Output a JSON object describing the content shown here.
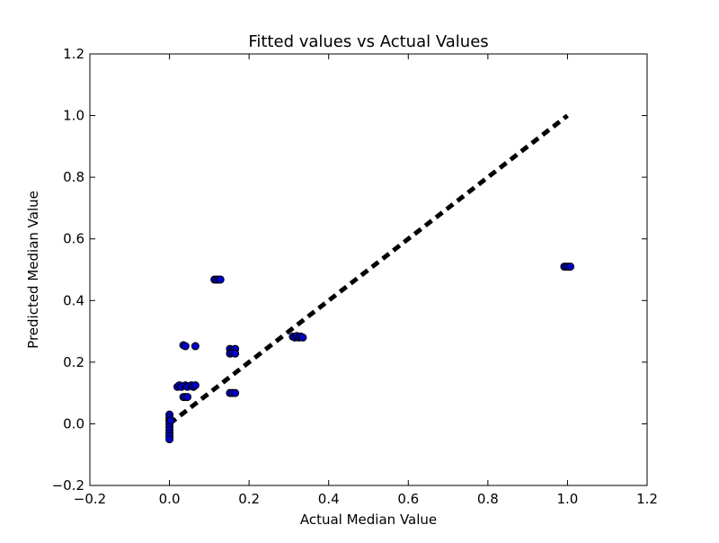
{
  "chart_data": {
    "type": "scatter",
    "title": "Fitted values vs Actual Values",
    "xlabel": "Actual Median Value",
    "ylabel": "Predicted Median Value",
    "xlim": [
      -0.2,
      1.2
    ],
    "ylim": [
      -0.2,
      1.2
    ],
    "xticks": [
      -0.2,
      0.0,
      0.2,
      0.4,
      0.6,
      0.8,
      1.0,
      1.2
    ],
    "yticks": [
      -0.2,
      0.0,
      0.2,
      0.4,
      0.6,
      0.8,
      1.0,
      1.2
    ],
    "xtick_labels": [
      "−0.2",
      "0.0",
      "0.2",
      "0.4",
      "0.6",
      "0.8",
      "1.0",
      "1.2"
    ],
    "ytick_labels": [
      "−0.2",
      "0.0",
      "0.2",
      "0.4",
      "0.6",
      "0.8",
      "1.0",
      "1.2"
    ],
    "grid": false,
    "marker_color": "#0000cc",
    "marker_edge_color": "#000000",
    "reference_line": {
      "x": [
        0.0,
        1.0
      ],
      "y": [
        0.0,
        1.0
      ],
      "style": "dashed",
      "color": "#000000"
    },
    "points": [
      {
        "x": 0.0,
        "y": 0.03
      },
      {
        "x": 0.0,
        "y": 0.02
      },
      {
        "x": 0.0,
        "y": 0.01
      },
      {
        "x": 0.0,
        "y": 0.0
      },
      {
        "x": 0.0,
        "y": -0.01
      },
      {
        "x": 0.0,
        "y": -0.02
      },
      {
        "x": 0.0,
        "y": -0.03
      },
      {
        "x": 0.0,
        "y": -0.04
      },
      {
        "x": 0.0,
        "y": -0.05
      },
      {
        "x": 0.003,
        "y": 0.01
      },
      {
        "x": 0.02,
        "y": 0.12
      },
      {
        "x": 0.025,
        "y": 0.125
      },
      {
        "x": 0.03,
        "y": 0.12
      },
      {
        "x": 0.04,
        "y": 0.125
      },
      {
        "x": 0.045,
        "y": 0.12
      },
      {
        "x": 0.055,
        "y": 0.125
      },
      {
        "x": 0.06,
        "y": 0.12
      },
      {
        "x": 0.065,
        "y": 0.125
      },
      {
        "x": 0.035,
        "y": 0.087
      },
      {
        "x": 0.04,
        "y": 0.087
      },
      {
        "x": 0.045,
        "y": 0.087
      },
      {
        "x": 0.035,
        "y": 0.255
      },
      {
        "x": 0.04,
        "y": 0.252
      },
      {
        "x": 0.065,
        "y": 0.252
      },
      {
        "x": 0.113,
        "y": 0.468
      },
      {
        "x": 0.118,
        "y": 0.468
      },
      {
        "x": 0.123,
        "y": 0.468
      },
      {
        "x": 0.128,
        "y": 0.468
      },
      {
        "x": 0.152,
        "y": 0.243
      },
      {
        "x": 0.158,
        "y": 0.24
      },
      {
        "x": 0.165,
        "y": 0.243
      },
      {
        "x": 0.152,
        "y": 0.228
      },
      {
        "x": 0.158,
        "y": 0.23
      },
      {
        "x": 0.165,
        "y": 0.228
      },
      {
        "x": 0.152,
        "y": 0.1
      },
      {
        "x": 0.158,
        "y": 0.1
      },
      {
        "x": 0.165,
        "y": 0.1
      },
      {
        "x": 0.31,
        "y": 0.283
      },
      {
        "x": 0.315,
        "y": 0.28
      },
      {
        "x": 0.32,
        "y": 0.285
      },
      {
        "x": 0.325,
        "y": 0.28
      },
      {
        "x": 0.33,
        "y": 0.283
      },
      {
        "x": 0.335,
        "y": 0.28
      },
      {
        "x": 0.992,
        "y": 0.51
      },
      {
        "x": 0.997,
        "y": 0.51
      },
      {
        "x": 1.002,
        "y": 0.51
      },
      {
        "x": 1.007,
        "y": 0.51
      }
    ]
  }
}
